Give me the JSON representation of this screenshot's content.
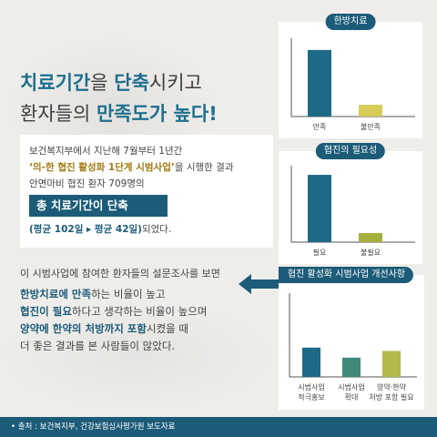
{
  "headline": {
    "l1_part1": "치료기간",
    "l1_part2": "을 ",
    "l1_part3": "단축",
    "l1_part4": "시키고",
    "l2_part1": "환자들의 ",
    "l2_part2": "만족도가 높다!"
  },
  "intro": {
    "line1": "보건복지부에서 지난해 7월부터 1년간",
    "line2_bold": "‘의-한 협진 활성화 1단계 시범사업’",
    "line2_rest": "을 시행한 결과",
    "line3": "안면마비 협진 환자 709명의",
    "stat_box": "총 치료기간이 단축",
    "avg_blue": "(평균 102일 ▸ 평균 42일)",
    "avg_rest": "되었다."
  },
  "survey": {
    "lead": "이 시범사업에 참여한 환자들의 설문조사를 보면",
    "l1_hi": "한방치료에 만족",
    "l1_rest": "하는 비율이 높고",
    "l2_hi": "협진이 필요",
    "l2_rest": "하다고 생각하는 비율이 높으며",
    "l3_hi1": "양약에 한약의 처방까지 포함",
    "l3_rest": "시켰을 때",
    "l4": "더 좋은 결과를 본 사람들이 많았다."
  },
  "chart_data": [
    {
      "type": "bar",
      "title": "한방치료",
      "categories": [
        "만족",
        "불만족"
      ],
      "values": [
        0.85,
        0.15
      ],
      "colors": [
        "#1d6a87",
        "#d5cd58"
      ]
    },
    {
      "type": "bar",
      "title": "협진의 필요성",
      "categories": [
        "필요",
        "불필요"
      ],
      "values": [
        0.88,
        0.12
      ],
      "colors": [
        "#1d6a87",
        "#a6b03e"
      ]
    },
    {
      "type": "bar",
      "title": "협진 활성화 시범사업 개선사항",
      "categories": [
        [
          "시범사업",
          "적극홍보"
        ],
        [
          "시범사업",
          "확대"
        ],
        [
          "양약·한약",
          "처방 포함 필요"
        ]
      ],
      "values": [
        0.35,
        0.23,
        0.31
      ],
      "colors": [
        "#1d6a87",
        "#3f8a79",
        "#b3b84a"
      ]
    }
  ],
  "footer": {
    "source": "• 출처 : 보건복지부, 건강보험심사평가원 보도자료"
  },
  "colors": {
    "background": "#efedea",
    "primary": "#1c5c78",
    "headline_blue": "#1e6f8e",
    "accent_gold": "#a07a12"
  }
}
